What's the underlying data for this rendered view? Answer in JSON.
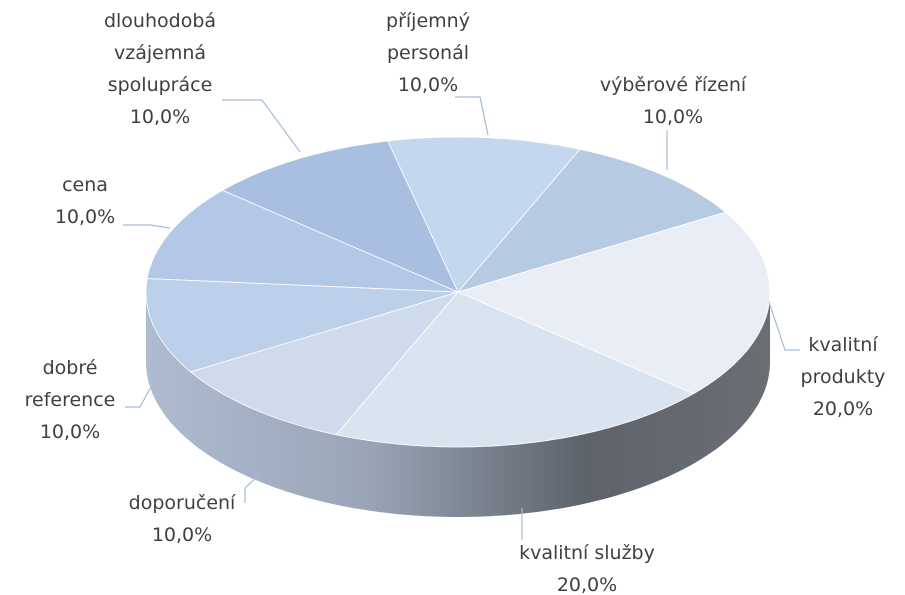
{
  "chart_data": {
    "type": "pie",
    "categories": [
      "výběrové řízení",
      "kvalitní produkty",
      "kvalitní služby",
      "doporučení",
      "dobré reference",
      "cena",
      "dlouhodobá vzájemná spolupráce",
      "příjemný personál"
    ],
    "values": [
      10,
      20,
      20,
      10,
      10,
      10,
      10,
      10
    ],
    "value_labels": [
      "10,0%",
      "20,0%",
      "20,0%",
      "10,0%",
      "10,0%",
      "10,0%",
      "10,0%",
      "10,0%"
    ],
    "colors": [
      "#b6cbe2",
      "#e9eef6",
      "#dae4f1",
      "#cfdbed",
      "#bdd0e9",
      "#b2c8e6",
      "#a9bfe2",
      "#c3d7ee"
    ]
  }
}
